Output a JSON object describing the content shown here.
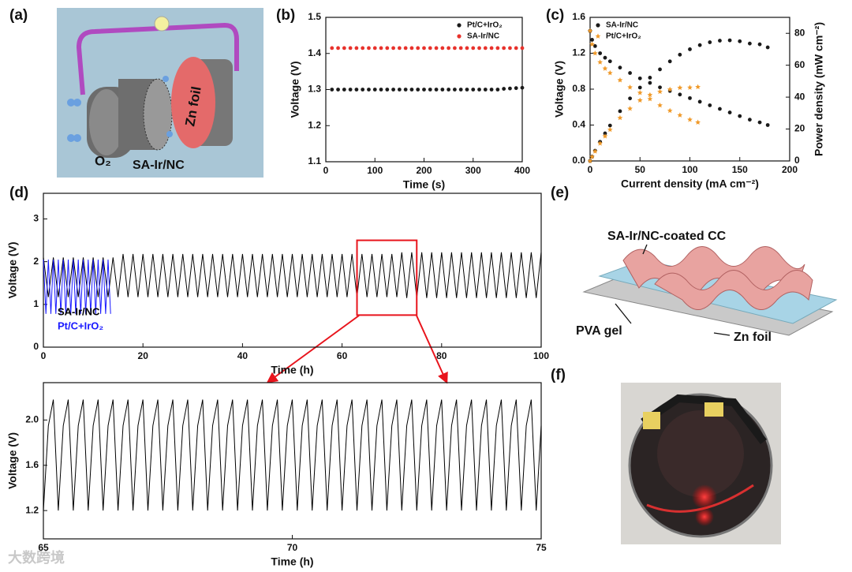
{
  "panels": [
    "(a)",
    "(b)",
    "(c)",
    "(d)",
    "(e)",
    "(f)"
  ],
  "illustration_a": {
    "cathode": "SA-Ir/NC",
    "anode": "Zn foil",
    "gas": "O₂"
  },
  "illustration_e": {
    "cathode": "SA-Ir/NC-coated CC",
    "electrolyte": "PVA gel",
    "anode": "Zn foil"
  },
  "watermark": "大数跨境",
  "chart_data": [
    {
      "type": "scatter",
      "xlabel": "Time (s)",
      "ylabel": "Voltage (V)",
      "x": [
        12.5,
        25,
        37.5,
        50,
        62.5,
        75,
        87.5,
        100,
        112.5,
        125,
        137.5,
        150,
        162.5,
        175,
        187.5,
        200,
        212.5,
        225,
        237.5,
        250,
        262.5,
        275,
        287.5,
        300,
        312.5,
        325,
        337.5,
        350,
        362.5,
        375,
        387.5,
        400
      ],
      "xlim": [
        0,
        400
      ],
      "xticks": [
        0,
        100,
        200,
        300,
        400
      ],
      "ylim": [
        1.1,
        1.5
      ],
      "yticks": [
        1.1,
        1.2,
        1.3,
        1.4,
        1.5
      ],
      "legend": "upper right",
      "series": [
        {
          "name": "Pt/C+IrO₂",
          "color": "#1a1a1a",
          "marker": "circle",
          "values": [
            1.3,
            1.3,
            1.3,
            1.3,
            1.3,
            1.3,
            1.3,
            1.3,
            1.3,
            1.3,
            1.3,
            1.3,
            1.3,
            1.3,
            1.3,
            1.3,
            1.3,
            1.3,
            1.3,
            1.3,
            1.3,
            1.3,
            1.3,
            1.3,
            1.3,
            1.3,
            1.3,
            1.3,
            1.302,
            1.303,
            1.304,
            1.305
          ]
        },
        {
          "name": "SA-Ir/NC",
          "color": "#e8322c",
          "marker": "circle",
          "values": [
            1.415,
            1.415,
            1.415,
            1.415,
            1.415,
            1.415,
            1.415,
            1.415,
            1.415,
            1.415,
            1.415,
            1.415,
            1.415,
            1.415,
            1.415,
            1.415,
            1.415,
            1.415,
            1.415,
            1.415,
            1.415,
            1.415,
            1.415,
            1.415,
            1.415,
            1.415,
            1.415,
            1.415,
            1.415,
            1.415,
            1.415,
            1.415
          ]
        }
      ]
    },
    {
      "type": "scatter",
      "xlabel": "Current density (mA cm⁻²)",
      "ylabel": "Voltage (V)",
      "y2label": "Power density (mW cm⁻²)",
      "xlim": [
        0,
        200
      ],
      "xticks": [
        0,
        50,
        100,
        150,
        200
      ],
      "ylim": [
        0,
        1.6
      ],
      "yticks": [
        {
          "value": 0,
          "label": "0.0"
        },
        0.4,
        0.8,
        1.2,
        1.6
      ],
      "y2lim": [
        0,
        90
      ],
      "y2ticks": [
        0,
        20,
        40,
        60,
        80
      ],
      "legend": "upper left",
      "series": [
        {
          "name": "SA-Ir/NC",
          "color": "#1a1a1a",
          "marker": "circle",
          "x": [
            0,
            2,
            5,
            10,
            15,
            20,
            30,
            40,
            50,
            60,
            70,
            80,
            90,
            100,
            110,
            120,
            130,
            140,
            150,
            160,
            170,
            178
          ],
          "values": [
            1.45,
            1.35,
            1.28,
            1.2,
            1.15,
            1.11,
            1.04,
            0.98,
            0.92,
            0.87,
            0.82,
            0.78,
            0.74,
            0.7,
            0.66,
            0.62,
            0.58,
            0.54,
            0.5,
            0.46,
            0.43,
            0.4
          ]
        },
        {
          "name": "Pt/C+IrO₂",
          "color": "#f09a2a",
          "marker": "star",
          "x": [
            0,
            2,
            5,
            10,
            15,
            20,
            30,
            40,
            50,
            60,
            70,
            80,
            90,
            100,
            108
          ],
          "values": [
            1.45,
            1.3,
            1.2,
            1.1,
            1.03,
            0.98,
            0.9,
            0.82,
            0.76,
            0.69,
            0.62,
            0.56,
            0.51,
            0.46,
            0.43
          ]
        },
        {
          "axis": "y2",
          "color": "#1a1a1a",
          "marker": "circle",
          "x": [
            0,
            2,
            5,
            10,
            15,
            20,
            30,
            40,
            50,
            60,
            70,
            80,
            90,
            100,
            110,
            120,
            130,
            140,
            150,
            160,
            170,
            178
          ],
          "values": [
            0,
            2.7,
            6.4,
            12,
            17.3,
            22.2,
            31.2,
            39.2,
            46,
            52.2,
            57.4,
            62.4,
            66.6,
            70,
            72.6,
            74.4,
            75.4,
            75.6,
            75,
            73.6,
            73.1,
            71.2
          ]
        },
        {
          "axis": "y2",
          "color": "#f09a2a",
          "marker": "star",
          "x": [
            0,
            2,
            5,
            10,
            15,
            20,
            30,
            40,
            50,
            60,
            70,
            80,
            90,
            100,
            108
          ],
          "values": [
            0,
            2.6,
            6,
            11,
            15.5,
            19.6,
            27,
            32.8,
            38,
            41.4,
            43.4,
            44.8,
            45.9,
            46,
            46.4
          ]
        }
      ]
    },
    {
      "type": "line",
      "xlabel": "Time (h)",
      "ylabel": "Voltage (V)",
      "xlim": [
        0,
        100
      ],
      "xticks": [
        0,
        20,
        40,
        60,
        80,
        100
      ],
      "ylim": [
        0,
        3.6
      ],
      "yticks": [
        0,
        1,
        2,
        3
      ],
      "legend": "lower left",
      "highlight": {
        "x": [
          63,
          75
        ],
        "y": [
          0.75,
          2.5
        ],
        "color": "#e8141c"
      },
      "series": [
        {
          "name": "SA-Ir/NC",
          "color": "#000000",
          "x": [
            0,
            1,
            2,
            3,
            4,
            5,
            6,
            7,
            8,
            9,
            10,
            11,
            12,
            13,
            14,
            15,
            16,
            17,
            18,
            19,
            20,
            21,
            22,
            23,
            24,
            25,
            26,
            27,
            28,
            29,
            30,
            31,
            32,
            33,
            34,
            35,
            36,
            37,
            38,
            39,
            40,
            41,
            42,
            43,
            44,
            45,
            46,
            47,
            48,
            49,
            50,
            51,
            52,
            53,
            54,
            55,
            56,
            57,
            58,
            59,
            60,
            61,
            62,
            63,
            64,
            65,
            66,
            67,
            68,
            69,
            70,
            71,
            72,
            73,
            74,
            75,
            76,
            77,
            78,
            79,
            80,
            81,
            82,
            83,
            84,
            85,
            86,
            87,
            88,
            89,
            90,
            91,
            92,
            93,
            94,
            95,
            96,
            97,
            98,
            99,
            100
          ],
          "values": [
            2.1,
            1.17,
            2.1,
            1.17,
            2.1,
            1.17,
            2.1,
            1.17,
            2.1,
            1.17,
            2.1,
            1.17,
            2.1,
            1.17,
            2.1,
            1.17,
            2.18,
            1.17,
            2.18,
            1.17,
            2.18,
            1.17,
            2.18,
            1.17,
            2.18,
            1.17,
            2.18,
            1.17,
            2.18,
            1.17,
            2.18,
            1.17,
            2.18,
            1.17,
            2.18,
            1.17,
            2.18,
            1.17,
            2.18,
            1.17,
            2.18,
            1.17,
            2.18,
            1.17,
            2.18,
            1.17,
            2.18,
            1.17,
            2.18,
            1.17,
            2.18,
            1.17,
            2.18,
            1.17,
            2.18,
            1.17,
            2.18,
            1.17,
            2.18,
            1.17,
            2.18,
            1.17,
            2.18,
            1.17,
            2.18,
            1.17,
            2.18,
            1.17,
            2.18,
            1.17,
            2.18,
            1.17,
            2.22,
            1.15,
            2.22,
            1.15,
            2.22,
            1.15,
            2.22,
            1.15,
            2.22,
            1.15,
            2.22,
            1.15,
            2.22,
            1.15,
            2.22,
            1.15,
            2.22,
            1.15,
            2.22,
            1.15,
            2.22,
            1.15,
            2.22,
            1.15,
            2.22,
            1.15,
            2.22,
            1.15,
            2.22
          ]
        },
        {
          "name": "Pt/C+IrO₂",
          "color": "#1a1aff",
          "x": [
            0,
            0.5,
            1,
            1.5,
            2,
            2.5,
            3,
            3.5,
            4,
            4.5,
            5,
            5.5,
            6,
            6.5,
            7,
            7.5,
            8,
            8.5,
            9,
            9.5,
            10,
            10.5,
            11,
            11.5,
            12,
            12.5,
            13,
            13.5
          ],
          "values": [
            2.05,
            0.78,
            2.05,
            0.78,
            2.05,
            0.78,
            2.05,
            0.78,
            2.05,
            0.78,
            2.05,
            0.78,
            2.05,
            0.78,
            2.05,
            0.78,
            2.05,
            0.78,
            2.05,
            0.78,
            2.05,
            0.78,
            2.05,
            0.78,
            2.05,
            0.78,
            2.05,
            0.78
          ]
        }
      ]
    },
    {
      "type": "line",
      "xlabel": "Time (h)",
      "ylabel": "Voltage (V)",
      "color": "#000000",
      "xlim": [
        65,
        75
      ],
      "xticks": [
        65,
        70,
        75
      ],
      "ylim": [
        0.95,
        2.33
      ],
      "yticks": [
        1.2,
        1.6,
        {
          "value": 2,
          "label": "2.0"
        }
      ],
      "x": [
        65,
        65.1,
        65.2,
        65.3,
        65.4,
        65.5,
        65.6,
        65.7,
        65.8,
        65.9,
        66,
        66.1,
        66.2,
        66.3,
        66.4,
        66.5,
        66.6,
        66.7,
        66.8,
        66.9,
        67,
        67.1,
        67.2,
        67.3,
        67.4,
        67.5,
        67.6,
        67.7,
        67.8,
        67.9,
        68,
        68.1,
        68.2,
        68.3,
        68.4,
        68.5,
        68.6,
        68.7,
        68.8,
        68.9,
        69,
        69.1,
        69.2,
        69.3,
        69.4,
        69.5,
        69.6,
        69.7,
        69.8,
        69.9,
        70,
        70.1,
        70.2,
        70.3,
        70.4,
        70.5,
        70.6,
        70.7,
        70.8,
        70.9,
        71,
        71.1,
        71.2,
        71.3,
        71.4,
        71.5,
        71.6,
        71.7,
        71.8,
        71.9,
        72,
        72.1,
        72.2,
        72.3,
        72.4,
        72.5,
        72.6,
        72.7,
        72.8,
        72.9,
        73,
        73.1,
        73.2,
        73.3,
        73.4,
        73.5,
        73.6,
        73.7,
        73.8,
        73.9,
        74,
        74.1,
        74.2,
        74.3,
        74.4,
        74.5,
        74.6,
        74.7,
        74.8,
        74.9,
        75
      ],
      "values": [
        1.2,
        1.95,
        2.18,
        1.2,
        1.95,
        2.18,
        1.2,
        1.95,
        2.18,
        1.2,
        1.95,
        2.18,
        1.2,
        1.95,
        2.18,
        1.2,
        1.95,
        2.18,
        1.2,
        1.95,
        2.18,
        1.2,
        1.95,
        2.18,
        1.2,
        1.95,
        2.18,
        1.2,
        1.95,
        2.18,
        1.2,
        1.95,
        2.18,
        1.2,
        1.95,
        2.18,
        1.2,
        1.95,
        2.18,
        1.2,
        1.95,
        2.18,
        1.2,
        1.95,
        2.18,
        1.2,
        1.95,
        2.18,
        1.2,
        1.95,
        2.18,
        1.2,
        1.95,
        2.18,
        1.2,
        1.95,
        2.18,
        1.2,
        1.95,
        2.18,
        1.2,
        1.95,
        2.18,
        1.2,
        1.95,
        2.18,
        1.2,
        1.95,
        2.18,
        1.2,
        1.95,
        2.18,
        1.2,
        1.95,
        2.18,
        1.2,
        1.95,
        2.18,
        1.2,
        1.95,
        2.18,
        1.2,
        1.95,
        2.18,
        1.2,
        1.95,
        2.18,
        1.2,
        1.95,
        2.18,
        1.2,
        1.95,
        2.18,
        1.2,
        1.95,
        2.18,
        1.2,
        1.95,
        2.18,
        1.2,
        1.95
      ]
    }
  ]
}
